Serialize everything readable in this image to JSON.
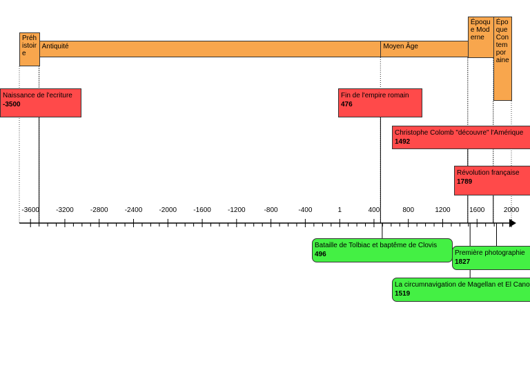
{
  "timeline": {
    "xlim": [
      -3730,
      2056
    ],
    "xticks": [
      -3600,
      -3200,
      -2800,
      -2400,
      -2000,
      -1600,
      -1200,
      -800,
      -400,
      1,
      400,
      800,
      1200,
      1600,
      2000
    ],
    "periods": [
      {
        "label": "Préhistoire",
        "start": -3730,
        "end": -3500
      },
      {
        "label": "Antiquité",
        "start": -3500,
        "end": 476
      },
      {
        "label": "Moyen Âge",
        "start": 476,
        "end": 1492
      },
      {
        "label": "Époque Moderne",
        "start": 1492,
        "end": 1789
      },
      {
        "label": "Époque Contemporaine",
        "start": 1789,
        "end": 2000
      }
    ],
    "events": [
      {
        "label": "Naissance de l'ecriture",
        "year": -3500
      },
      {
        "label": "Fin de l'empire romain",
        "year": 476
      },
      {
        "label": "Christophe Colomb \"découvre\" l'Amérique",
        "year": 1492
      },
      {
        "label": "Révolution française",
        "year": 1789
      },
      {
        "label": "Bataille de Tolbiac et baptême de Clovis",
        "year": 496
      },
      {
        "label": "Première photographie",
        "year": 1827
      },
      {
        "label": "La circumnavigation de Magellan et El Cano",
        "year": 1519
      }
    ]
  }
}
